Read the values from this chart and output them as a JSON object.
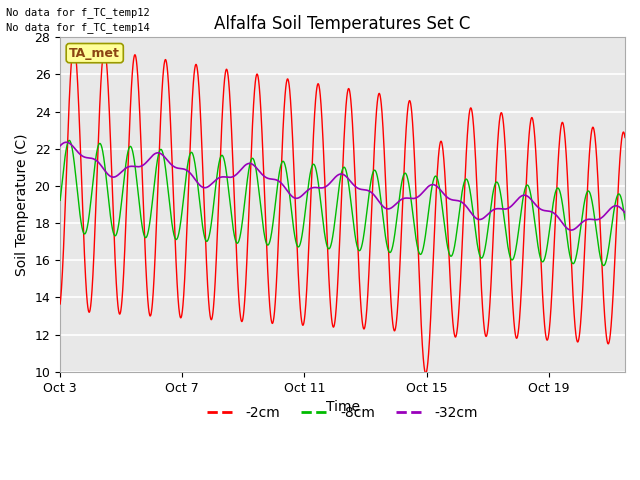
{
  "title": "Alfalfa Soil Temperatures Set C",
  "xlabel": "Time",
  "ylabel": "Soil Temperature (C)",
  "xlim_days": [
    0,
    18.5
  ],
  "ylim": [
    10,
    28
  ],
  "yticks": [
    10,
    12,
    14,
    16,
    18,
    20,
    22,
    24,
    26,
    28
  ],
  "xtick_positions": [
    0,
    4,
    8,
    12,
    16
  ],
  "xtick_labels": [
    "Oct 3",
    "Oct 7",
    "Oct 11",
    "Oct 15",
    "Oct 19"
  ],
  "colors": {
    "2cm": "#ff0000",
    "8cm": "#00bb00",
    "32cm": "#9900bb"
  },
  "legend_labels": [
    "-2cm",
    "-8cm",
    "-32cm"
  ],
  "no_data_text": [
    "No data for f_TC_temp12",
    "No data for f_TC_temp14"
  ],
  "ta_met_label": "TA_met",
  "fig_bg_color": "#ffffff",
  "plot_bg_color": "#e8e8e8",
  "grid_color": "#ffffff",
  "num_days": 18.5
}
